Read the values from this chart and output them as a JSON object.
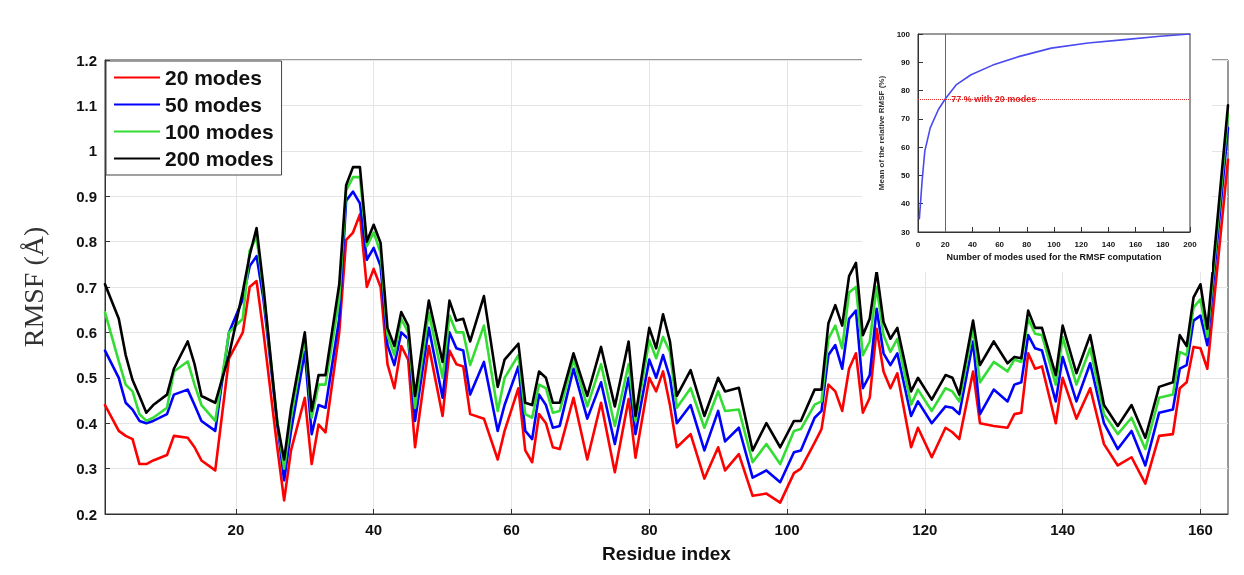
{
  "chart_data": [
    {
      "type": "line",
      "xlabel": "Residue index",
      "ylabel": "RMSF (Å)",
      "xlim": [
        1,
        164
      ],
      "xticks": [
        20,
        40,
        60,
        80,
        100,
        120,
        140,
        160
      ],
      "ylim": [
        0.2,
        1.2
      ],
      "yticks": [
        0.2,
        0.3,
        0.4,
        0.5,
        0.6,
        0.7,
        0.8,
        0.9,
        1,
        1.1,
        1.2
      ],
      "grid": true,
      "legend": "top left",
      "marker": "none",
      "line_style": "solid",
      "x": [
        1,
        3,
        4,
        5,
        6,
        7,
        8,
        10,
        11,
        13,
        14,
        15,
        17,
        19,
        21,
        22,
        23,
        24,
        26,
        27,
        28,
        30,
        31,
        32,
        33,
        35,
        36,
        37,
        38,
        39,
        40,
        41,
        42,
        43,
        44,
        45,
        46,
        48,
        50,
        51,
        52,
        53,
        54,
        56,
        58,
        59,
        61,
        62,
        63,
        64,
        65,
        66,
        67,
        69,
        71,
        73,
        75,
        77,
        78,
        80,
        81,
        82,
        83,
        84,
        86,
        88,
        90,
        91,
        93,
        95,
        97,
        99,
        101,
        102,
        104,
        105,
        106,
        107,
        108,
        109,
        110,
        111,
        112,
        113,
        114,
        115,
        116,
        118,
        119,
        121,
        123,
        124,
        125,
        127,
        128,
        130,
        132,
        133,
        134,
        135,
        136,
        137,
        139,
        140,
        142,
        144,
        146,
        148,
        150,
        152,
        154,
        156,
        157,
        158,
        159,
        160,
        161,
        164
      ],
      "series": [
        {
          "name": "20 modes",
          "color": "#ff0000",
          "values": [
            0.44,
            0.383,
            0.372,
            0.365,
            0.31,
            0.31,
            0.318,
            0.33,
            0.372,
            0.368,
            0.347,
            0.318,
            0.296,
            0.543,
            0.6,
            0.7,
            0.713,
            0.6,
            0.347,
            0.23,
            0.34,
            0.456,
            0.31,
            0.397,
            0.38,
            0.6,
            0.804,
            0.82,
            0.86,
            0.7,
            0.74,
            0.7,
            0.53,
            0.477,
            0.57,
            0.54,
            0.347,
            0.57,
            0.416,
            0.56,
            0.53,
            0.525,
            0.42,
            0.41,
            0.32,
            0.383,
            0.477,
            0.34,
            0.314,
            0.42,
            0.4,
            0.347,
            0.343,
            0.456,
            0.32,
            0.445,
            0.292,
            0.453,
            0.324,
            0.5,
            0.47,
            0.514,
            0.44,
            0.347,
            0.376,
            0.278,
            0.347,
            0.296,
            0.332,
            0.24,
            0.245,
            0.225,
            0.29,
            0.3,
            0.357,
            0.387,
            0.485,
            0.47,
            0.427,
            0.52,
            0.554,
            0.423,
            0.456,
            0.608,
            0.514,
            0.477,
            0.51,
            0.347,
            0.39,
            0.325,
            0.39,
            0.38,
            0.365,
            0.514,
            0.4,
            0.394,
            0.39,
            0.42,
            0.423,
            0.554,
            0.52,
            0.525,
            0.4,
            0.5,
            0.41,
            0.477,
            0.354,
            0.307,
            0.325,
            0.267,
            0.372,
            0.376,
            0.477,
            0.49,
            0.568,
            0.565,
            0.52,
            0.98
          ]
        },
        {
          "name": "50 modes",
          "color": "#0000ff",
          "values": [
            0.56,
            0.5,
            0.445,
            0.43,
            0.405,
            0.4,
            0.405,
            0.42,
            0.463,
            0.474,
            0.44,
            0.405,
            0.383,
            0.6,
            0.673,
            0.746,
            0.768,
            0.673,
            0.4,
            0.274,
            0.383,
            0.557,
            0.376,
            0.44,
            0.434,
            0.63,
            0.89,
            0.91,
            0.884,
            0.76,
            0.786,
            0.746,
            0.572,
            0.528,
            0.6,
            0.586,
            0.405,
            0.61,
            0.456,
            0.6,
            0.565,
            0.56,
            0.463,
            0.535,
            0.383,
            0.44,
            0.525,
            0.383,
            0.365,
            0.463,
            0.44,
            0.39,
            0.394,
            0.52,
            0.41,
            0.49,
            0.354,
            0.5,
            0.376,
            0.54,
            0.5,
            0.55,
            0.5,
            0.4,
            0.44,
            0.34,
            0.427,
            0.36,
            0.39,
            0.28,
            0.296,
            0.27,
            0.336,
            0.34,
            0.412,
            0.427,
            0.55,
            0.572,
            0.52,
            0.63,
            0.648,
            0.477,
            0.506,
            0.652,
            0.554,
            0.528,
            0.554,
            0.416,
            0.448,
            0.4,
            0.437,
            0.434,
            0.42,
            0.58,
            0.42,
            0.474,
            0.448,
            0.485,
            0.49,
            0.594,
            0.565,
            0.56,
            0.448,
            0.546,
            0.448,
            0.532,
            0.4,
            0.343,
            0.383,
            0.307,
            0.423,
            0.43,
            0.52,
            0.528,
            0.626,
            0.637,
            0.572,
            1.05
          ]
        },
        {
          "name": "100 modes",
          "color": "#33dd33",
          "values": [
            0.644,
            0.536,
            0.485,
            0.47,
            0.42,
            0.405,
            0.412,
            0.434,
            0.514,
            0.536,
            0.485,
            0.44,
            0.405,
            0.6,
            0.63,
            0.78,
            0.81,
            0.69,
            0.405,
            0.3,
            0.412,
            0.586,
            0.412,
            0.485,
            0.485,
            0.673,
            0.913,
            0.942,
            0.942,
            0.79,
            0.82,
            0.775,
            0.594,
            0.55,
            0.63,
            0.6,
            0.434,
            0.644,
            0.5,
            0.637,
            0.6,
            0.6,
            0.528,
            0.615,
            0.427,
            0.5,
            0.55,
            0.42,
            0.412,
            0.485,
            0.477,
            0.423,
            0.427,
            0.54,
            0.437,
            0.53,
            0.394,
            0.53,
            0.405,
            0.583,
            0.543,
            0.59,
            0.557,
            0.434,
            0.477,
            0.39,
            0.47,
            0.427,
            0.43,
            0.314,
            0.354,
            0.31,
            0.383,
            0.387,
            0.441,
            0.448,
            0.586,
            0.615,
            0.565,
            0.688,
            0.7,
            0.55,
            0.58,
            0.7,
            0.594,
            0.557,
            0.586,
            0.441,
            0.474,
            0.427,
            0.477,
            0.47,
            0.448,
            0.608,
            0.49,
            0.535,
            0.514,
            0.54,
            0.535,
            0.63,
            0.597,
            0.594,
            0.485,
            0.59,
            0.485,
            0.565,
            0.42,
            0.376,
            0.412,
            0.343,
            0.456,
            0.463,
            0.557,
            0.55,
            0.655,
            0.673,
            0.59,
            1.08
          ]
        },
        {
          "name": "200 modes",
          "color": "#000000",
          "values": [
            0.706,
            0.63,
            0.55,
            0.495,
            0.46,
            0.423,
            0.44,
            0.463,
            0.52,
            0.58,
            0.53,
            0.46,
            0.445,
            0.55,
            0.69,
            0.77,
            0.83,
            0.7,
            0.4,
            0.32,
            0.433,
            0.6,
            0.427,
            0.506,
            0.506,
            0.706,
            0.924,
            0.964,
            0.964,
            0.8,
            0.837,
            0.797,
            0.61,
            0.57,
            0.645,
            0.615,
            0.46,
            0.67,
            0.535,
            0.67,
            0.626,
            0.63,
            0.58,
            0.68,
            0.48,
            0.54,
            0.575,
            0.445,
            0.44,
            0.514,
            0.5,
            0.445,
            0.445,
            0.554,
            0.46,
            0.568,
            0.437,
            0.58,
            0.416,
            0.61,
            0.565,
            0.64,
            0.58,
            0.46,
            0.517,
            0.416,
            0.5,
            0.47,
            0.478,
            0.34,
            0.4,
            0.347,
            0.405,
            0.405,
            0.474,
            0.474,
            0.62,
            0.66,
            0.615,
            0.724,
            0.753,
            0.594,
            0.63,
            0.735,
            0.623,
            0.586,
            0.61,
            0.47,
            0.5,
            0.452,
            0.506,
            0.5,
            0.463,
            0.626,
            0.528,
            0.58,
            0.532,
            0.546,
            0.543,
            0.648,
            0.61,
            0.61,
            0.506,
            0.615,
            0.51,
            0.594,
            0.44,
            0.394,
            0.44,
            0.368,
            0.48,
            0.49,
            0.594,
            0.57,
            0.677,
            0.706,
            0.608,
            1.1
          ]
        }
      ]
    },
    {
      "type": "line",
      "xlabel": "Number of modes used for the RMSF computation",
      "ylabel": "Mean of the relative RMSF (%)",
      "xlim": [
        0,
        200
      ],
      "xticks": [
        0,
        20,
        40,
        60,
        80,
        100,
        120,
        140,
        160,
        180,
        200
      ],
      "ylim": [
        30,
        100
      ],
      "yticks": [
        30,
        40,
        50,
        60,
        70,
        80,
        90,
        100
      ],
      "marker": "none",
      "x": [
        1,
        3,
        5,
        9,
        15,
        20,
        28,
        39,
        55,
        74,
        98,
        125,
        152,
        178,
        200
      ],
      "series": [
        {
          "color": "#4a4af0",
          "values": [
            34.7,
            48,
            58.6,
            66.8,
            73.3,
            77,
            82,
            85.6,
            89,
            92,
            95,
            96.8,
            98,
            99.2,
            100
          ]
        }
      ],
      "ref_lines": [
        {
          "axis": "x",
          "value": 20,
          "color": "#e03030"
        },
        {
          "axis": "y",
          "value": 77,
          "color": "#e03030",
          "line_style": "dotted"
        }
      ],
      "annotations": [
        {
          "text": "77 % with 20 modes",
          "x": 20,
          "y": 77
        }
      ]
    }
  ]
}
